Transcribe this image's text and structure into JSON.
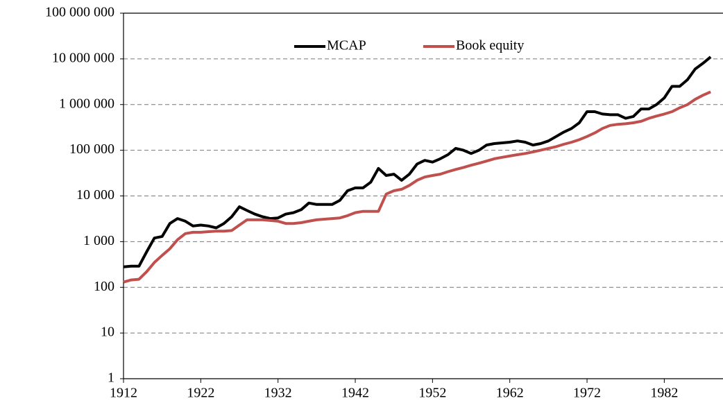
{
  "chart_data": {
    "type": "line",
    "log_scale": true,
    "grid": true,
    "legend": "top",
    "x": [
      1912,
      1913,
      1914,
      1915,
      1916,
      1917,
      1918,
      1919,
      1920,
      1921,
      1922,
      1923,
      1924,
      1925,
      1926,
      1927,
      1928,
      1929,
      1930,
      1931,
      1932,
      1933,
      1934,
      1935,
      1936,
      1937,
      1938,
      1939,
      1940,
      1941,
      1942,
      1943,
      1944,
      1945,
      1946,
      1947,
      1948,
      1949,
      1950,
      1951,
      1952,
      1953,
      1954,
      1955,
      1956,
      1957,
      1958,
      1959,
      1960,
      1961,
      1962,
      1963,
      1964,
      1965,
      1966,
      1967,
      1968,
      1969,
      1970,
      1971,
      1972,
      1973,
      1974,
      1975,
      1976,
      1977,
      1978,
      1979,
      1980,
      1981,
      1982,
      1983,
      1984,
      1985,
      1986,
      1987,
      1988
    ],
    "series": [
      {
        "name": "MCAP",
        "color": "#000000",
        "values": [
          280,
          290,
          290,
          600,
          1200,
          1300,
          2500,
          3200,
          2800,
          2200,
          2300,
          2200,
          2000,
          2500,
          3500,
          5800,
          4800,
          4000,
          3500,
          3200,
          3300,
          4000,
          4300,
          5000,
          7000,
          6500,
          6500,
          6500,
          8000,
          13000,
          15000,
          15000,
          20000,
          40000,
          28000,
          30000,
          22000,
          30000,
          50000,
          60000,
          55000,
          65000,
          80000,
          110000,
          100000,
          85000,
          100000,
          130000,
          140000,
          145000,
          150000,
          160000,
          150000,
          130000,
          140000,
          160000,
          200000,
          250000,
          300000,
          400000,
          700000,
          700000,
          620000,
          600000,
          600000,
          500000,
          550000,
          800000,
          800000,
          1000000,
          1400000,
          2500000,
          2500000,
          3500000,
          6000000,
          8000000,
          11000000
        ]
      },
      {
        "name": "Book equity",
        "color": "#c0504d",
        "values": [
          130,
          145,
          150,
          220,
          350,
          500,
          700,
          1100,
          1500,
          1600,
          1600,
          1650,
          1700,
          1700,
          1750,
          2300,
          3000,
          3000,
          3000,
          2900,
          2800,
          2500,
          2500,
          2600,
          2800,
          3000,
          3100,
          3200,
          3300,
          3700,
          4300,
          4600,
          4600,
          4600,
          11000,
          13000,
          14000,
          17000,
          22000,
          26000,
          28000,
          30000,
          34000,
          38000,
          42000,
          47000,
          52000,
          58000,
          65000,
          70000,
          75000,
          80000,
          85000,
          92000,
          100000,
          110000,
          120000,
          135000,
          150000,
          170000,
          200000,
          240000,
          300000,
          350000,
          370000,
          380000,
          400000,
          430000,
          500000,
          560000,
          620000,
          700000,
          850000,
          1000000,
          1300000,
          1600000,
          1900000
        ]
      }
    ],
    "xlim": [
      1912,
      1989.6
    ],
    "xticks": [
      1912,
      1922,
      1932,
      1942,
      1952,
      1962,
      1972,
      1982
    ],
    "ylim": [
      1,
      100000000
    ],
    "yticks": [
      1,
      10,
      100,
      {
        "value": 1000,
        "label": "1 000"
      },
      {
        "value": 10000,
        "label": "10 000"
      },
      {
        "value": 100000,
        "label": "100 000"
      },
      {
        "value": 1000000,
        "label": "1 000 000"
      },
      {
        "value": 10000000,
        "label": "10 000 000"
      },
      {
        "value": 100000000,
        "label": "100 000 000"
      }
    ]
  }
}
